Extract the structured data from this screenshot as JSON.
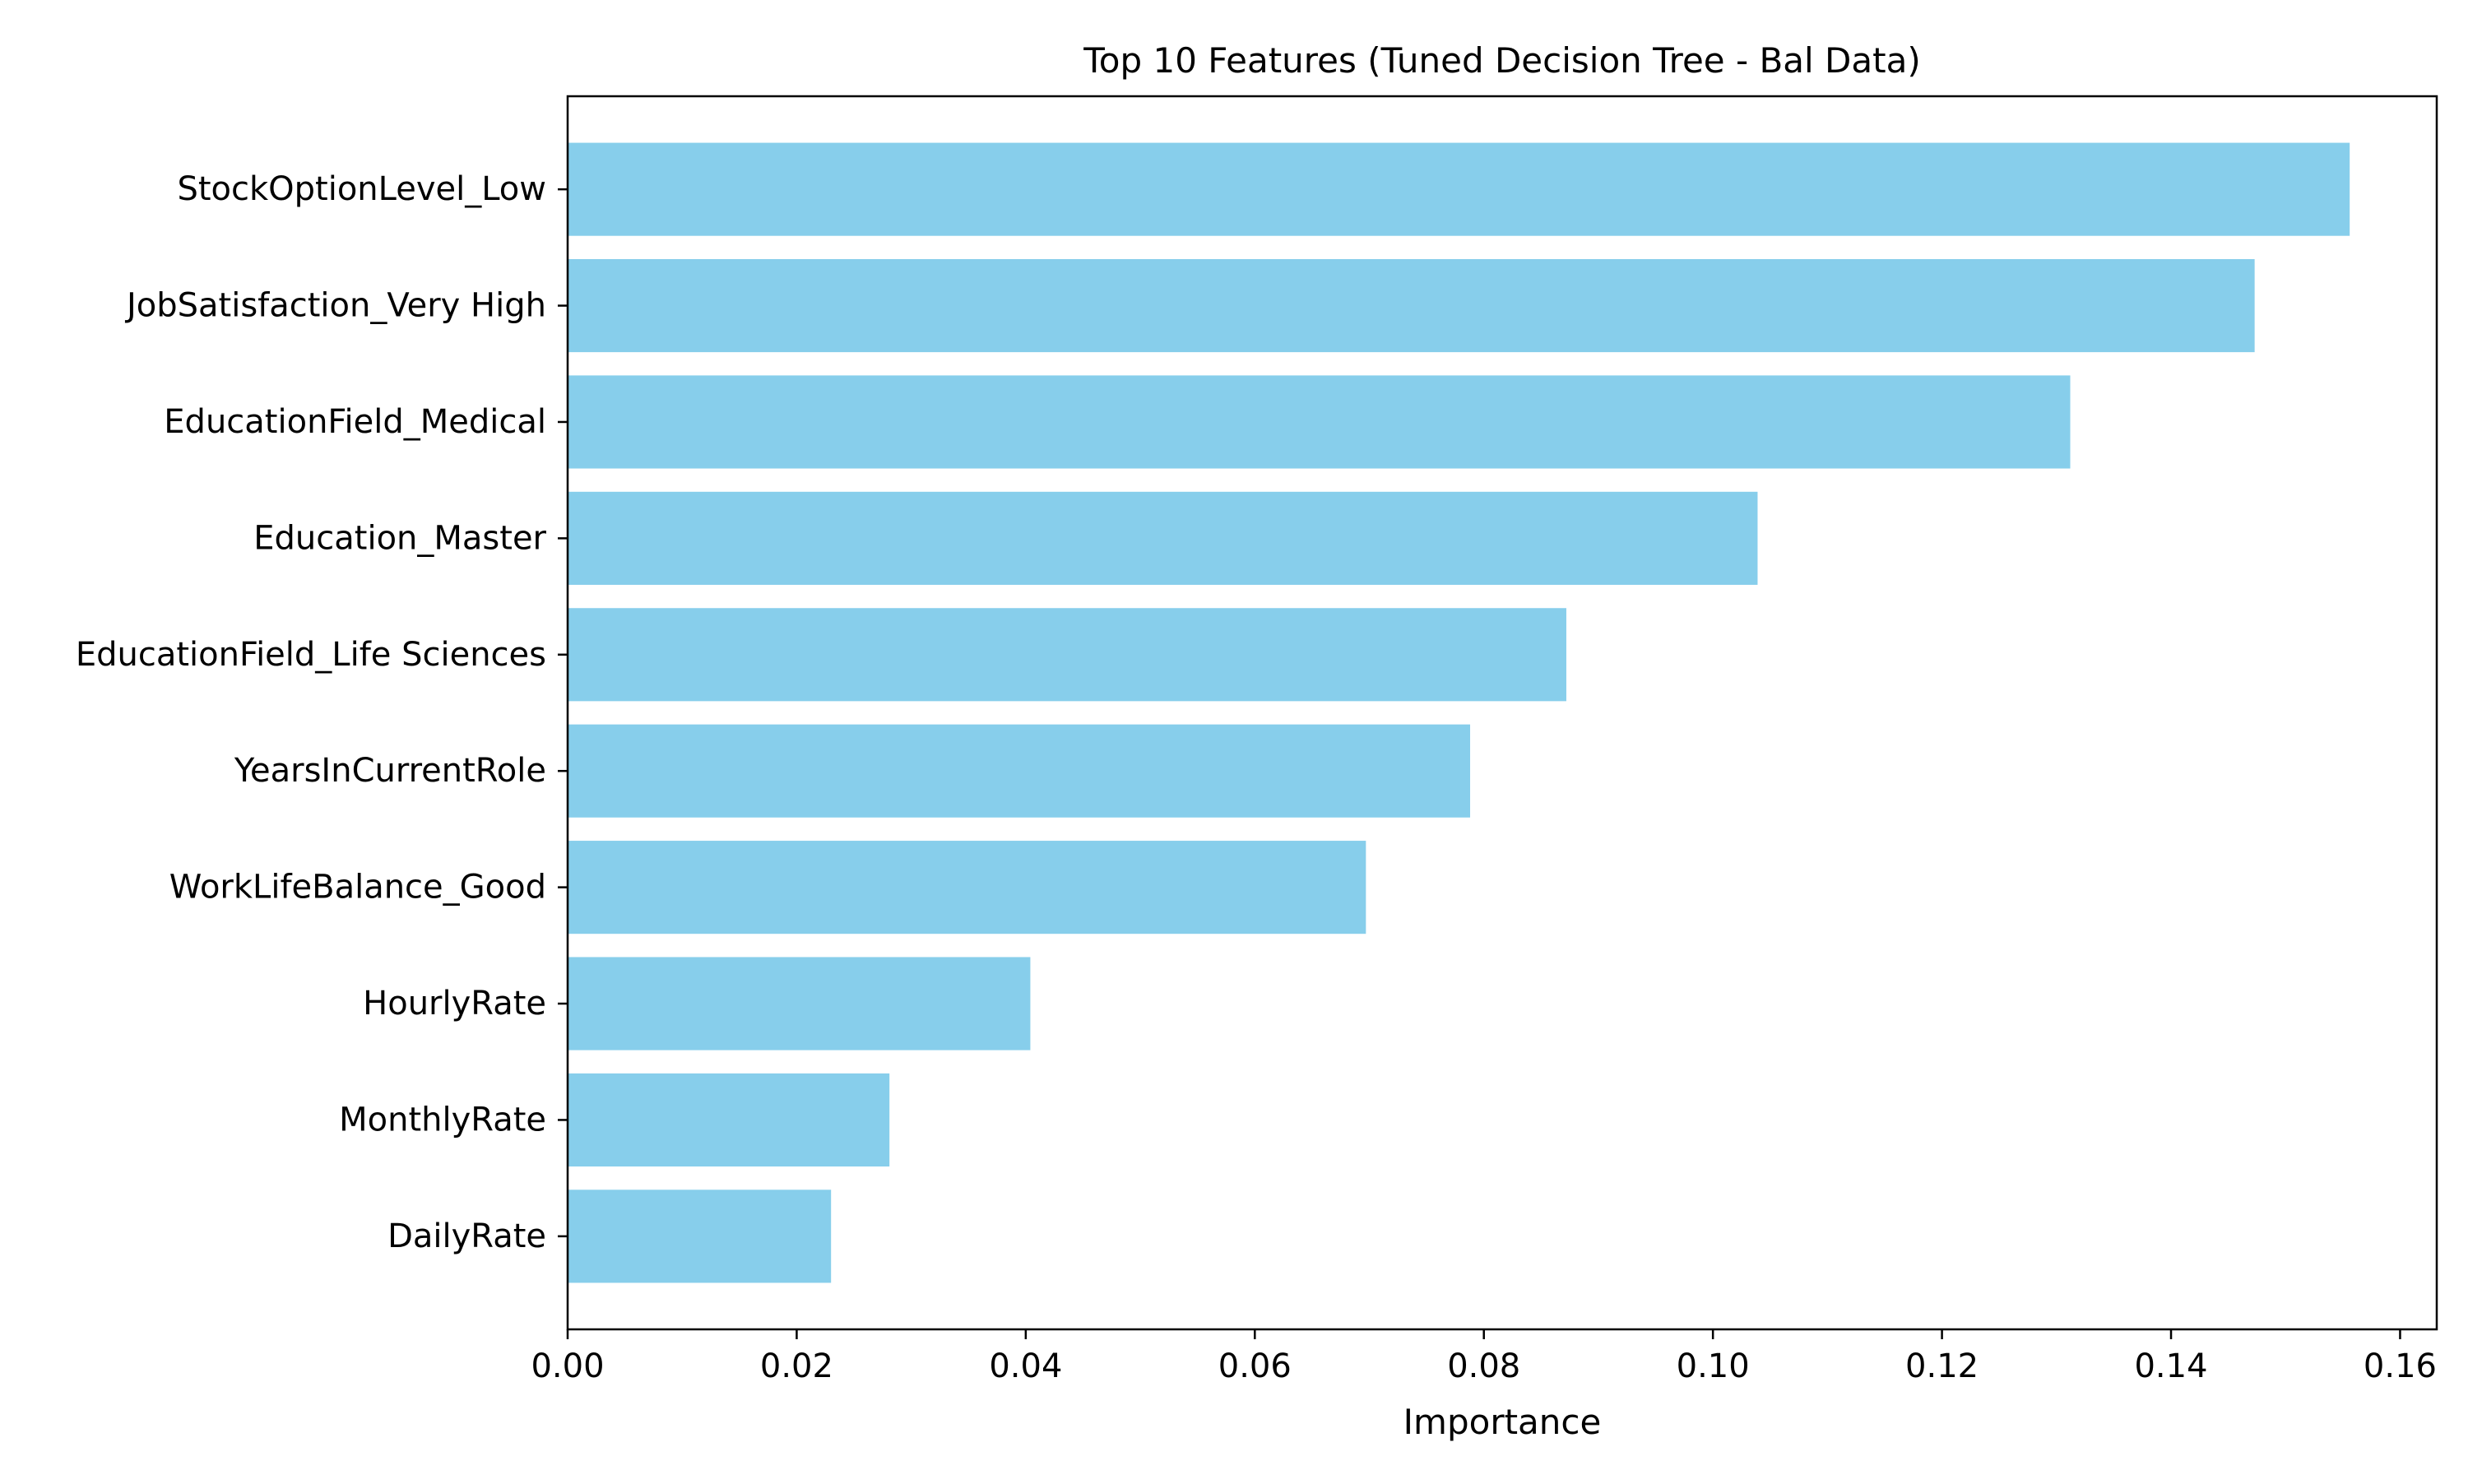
{
  "chart_data": {
    "type": "bar",
    "orientation": "horizontal",
    "title": "Top 10 Features (Tuned Decision Tree - Bal Data)",
    "xlabel": "Importance",
    "ylabel": "",
    "categories": [
      "StockOptionLevel_Low",
      "JobSatisfaction_Very High",
      "EducationField_Medical",
      "Education_Master",
      "EducationField_Life Sciences",
      "YearsInCurrentRole",
      "WorkLifeBalance_Good",
      "HourlyRate",
      "MonthlyRate",
      "DailyRate"
    ],
    "values": [
      0.1556,
      0.1473,
      0.1312,
      0.1039,
      0.0872,
      0.0788,
      0.0697,
      0.0404,
      0.0281,
      0.023
    ],
    "xlim": [
      0,
      0.1632
    ],
    "xticks": [
      0.0,
      0.02,
      0.04,
      0.06,
      0.08,
      0.1,
      0.12,
      0.14,
      0.16
    ],
    "xtick_labels": [
      "0.00",
      "0.02",
      "0.04",
      "0.06",
      "0.08",
      "0.10",
      "0.12",
      "0.14",
      "0.16"
    ],
    "grid": false,
    "legend": "none",
    "bar_color": "#87ceeb"
  }
}
